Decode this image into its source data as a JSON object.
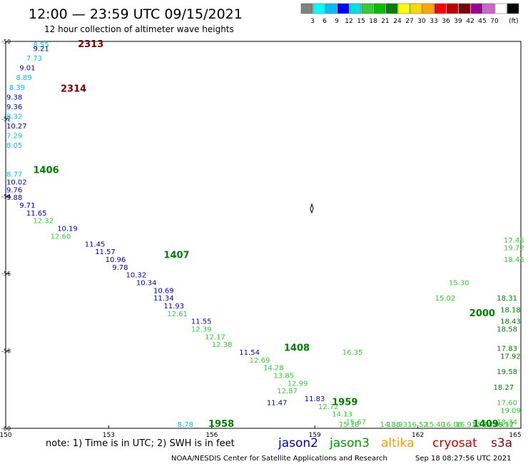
{
  "header": {
    "title": "12:00 — 23:59 UTC 09/15/2021",
    "subtitle": "12 hour collection of altimeter wave heights"
  },
  "legend": {
    "unit": "(ft)",
    "colors": [
      "#808080",
      "#00ffff",
      "#00bfff",
      "#0000ff",
      "#00e0e0",
      "#32cd32",
      "#00c000",
      "#008000",
      "#ffff00",
      "#ffd700",
      "#ffa500",
      "#ff0000",
      "#c00000",
      "#800000",
      "#990099",
      "#cc66cc",
      "#ffffff",
      "#000000"
    ],
    "labels": [
      "3",
      "6",
      "9",
      "12",
      "15",
      "18",
      "21",
      "24",
      "27",
      "30",
      "33",
      "36",
      "39",
      "42",
      "45",
      "70"
    ]
  },
  "axes": {
    "lon_ticks": [
      "150",
      "153",
      "156",
      "159",
      "162",
      "165"
    ],
    "lat_ticks": [
      "-50",
      "-52",
      "-54",
      "-56",
      "-58",
      "-60"
    ]
  },
  "track_labels": [
    {
      "text": "2313",
      "lon": 152.1,
      "lat": -50.0,
      "color": "#800000"
    },
    {
      "text": "2314",
      "lon": 151.6,
      "lat": -51.3,
      "color": "#800000"
    },
    {
      "text": "1406",
      "lon": 150.8,
      "lat": -53.4,
      "color": "#008000"
    },
    {
      "text": "1407",
      "lon": 154.6,
      "lat": -55.6,
      "color": "#008000"
    },
    {
      "text": "1408",
      "lon": 158.1,
      "lat": -58.0,
      "color": "#008000"
    },
    {
      "text": "1409",
      "lon": 163.6,
      "lat": -60.5,
      "color": "#008000"
    },
    {
      "text": "1958",
      "lon": 155.9,
      "lat": -60.7,
      "color": "#008000"
    },
    {
      "text": "1959",
      "lon": 159.5,
      "lat": -59.4,
      "color": "#008000"
    },
    {
      "text": "2000",
      "lon": 163.5,
      "lat": -57.1,
      "color": "#008000"
    }
  ],
  "readings": [
    {
      "v": "8.55",
      "lon": 150.8,
      "lat": -50.0,
      "c": "#00bfff"
    },
    {
      "v": "9.21",
      "lon": 150.8,
      "lat": -50.25,
      "c": "#0000c0"
    },
    {
      "v": "7.73",
      "lon": 150.6,
      "lat": -50.5,
      "c": "#00bfff"
    },
    {
      "v": "9.01",
      "lon": 150.4,
      "lat": -50.75,
      "c": "#0000c0"
    },
    {
      "v": "8.89",
      "lon": 150.3,
      "lat": -51.0,
      "c": "#00bfff"
    },
    {
      "v": "8.39",
      "lon": 150.1,
      "lat": -51.25,
      "c": "#00bfff"
    },
    {
      "v": "9.38",
      "lon": 149.95,
      "lat": -51.5,
      "c": "#0000c0"
    },
    {
      "v": "9.36",
      "lon": 149.8,
      "lat": -51.75,
      "c": "#0000c0"
    },
    {
      "v": "8.32",
      "lon": 149.65,
      "lat": -52.0,
      "c": "#00bfff"
    },
    {
      "v": "10.27",
      "lon": 149.5,
      "lat": -52.25,
      "c": "#0000c0"
    },
    {
      "v": "7.29",
      "lon": 149.35,
      "lat": -52.5,
      "c": "#00bfff"
    },
    {
      "v": "8.05",
      "lon": 149.2,
      "lat": -52.75,
      "c": "#00bfff"
    },
    {
      "v": "8.77",
      "lon": 149.3,
      "lat": -53.5,
      "c": "#00bfff"
    },
    {
      "v": "10.02",
      "lon": 149.6,
      "lat": -53.7,
      "c": "#0000c0"
    },
    {
      "v": "9.76",
      "lon": 149.8,
      "lat": -53.9,
      "c": "#0000c0"
    },
    {
      "v": "9.88",
      "lon": 150.0,
      "lat": -54.1,
      "c": "#0000c0"
    },
    {
      "v": "9.71",
      "lon": 150.4,
      "lat": -54.3,
      "c": "#0000c0"
    },
    {
      "v": "11.65",
      "lon": 150.6,
      "lat": -54.5,
      "c": "#0000c0"
    },
    {
      "v": "12.32",
      "lon": 150.8,
      "lat": -54.7,
      "c": "#32cd32"
    },
    {
      "v": "10.19",
      "lon": 151.5,
      "lat": -54.9,
      "c": "#0000c0"
    },
    {
      "v": "12.60",
      "lon": 151.3,
      "lat": -55.1,
      "c": "#32cd32"
    },
    {
      "v": "11.45",
      "lon": 152.3,
      "lat": -55.3,
      "c": "#0000c0"
    },
    {
      "v": "11.57",
      "lon": 152.6,
      "lat": -55.5,
      "c": "#0000c0"
    },
    {
      "v": "10.96",
      "lon": 152.9,
      "lat": -55.7,
      "c": "#0000c0"
    },
    {
      "v": "9.78",
      "lon": 153.1,
      "lat": -55.9,
      "c": "#0000c0"
    },
    {
      "v": "10.32",
      "lon": 153.5,
      "lat": -56.1,
      "c": "#0000c0"
    },
    {
      "v": "10.34",
      "lon": 153.8,
      "lat": -56.3,
      "c": "#0000c0"
    },
    {
      "v": "10.69",
      "lon": 154.3,
      "lat": -56.5,
      "c": "#0000c0"
    },
    {
      "v": "11.34",
      "lon": 154.3,
      "lat": -56.7,
      "c": "#0000c0"
    },
    {
      "v": "11.93",
      "lon": 154.6,
      "lat": -56.9,
      "c": "#0000c0"
    },
    {
      "v": "12.61",
      "lon": 154.7,
      "lat": -57.1,
      "c": "#32cd32"
    },
    {
      "v": "11.55",
      "lon": 155.4,
      "lat": -57.3,
      "c": "#0000c0"
    },
    {
      "v": "12.39",
      "lon": 155.4,
      "lat": -57.5,
      "c": "#32cd32"
    },
    {
      "v": "12.17",
      "lon": 155.8,
      "lat": -57.7,
      "c": "#32cd32"
    },
    {
      "v": "12.38",
      "lon": 156.0,
      "lat": -57.9,
      "c": "#32cd32"
    },
    {
      "v": "11.54",
      "lon": 156.8,
      "lat": -58.1,
      "c": "#0000c0"
    },
    {
      "v": "12.69",
      "lon": 157.1,
      "lat": -58.3,
      "c": "#32cd32"
    },
    {
      "v": "14.28",
      "lon": 157.5,
      "lat": -58.5,
      "c": "#32cd32"
    },
    {
      "v": "13.85",
      "lon": 157.8,
      "lat": -58.7,
      "c": "#32cd32"
    },
    {
      "v": "12.99",
      "lon": 158.2,
      "lat": -58.9,
      "c": "#32cd32"
    },
    {
      "v": "12.87",
      "lon": 157.9,
      "lat": -59.1,
      "c": "#32cd32"
    },
    {
      "v": "11.83",
      "lon": 158.7,
      "lat": -59.3,
      "c": "#0000c0"
    },
    {
      "v": "12.72",
      "lon": 159.1,
      "lat": -59.5,
      "c": "#32cd32"
    },
    {
      "v": "14.13",
      "lon": 159.5,
      "lat": -59.7,
      "c": "#32cd32"
    },
    {
      "v": "15.67",
      "lon": 159.9,
      "lat": -59.9,
      "c": "#32cd32"
    },
    {
      "v": "15.18",
      "lon": 159.7,
      "lat": -60.1,
      "c": "#32cd32"
    },
    {
      "v": "14.86",
      "lon": 160.9,
      "lat": -60.3,
      "c": "#32cd32"
    },
    {
      "v": "13.93",
      "lon": 161.1,
      "lat": -60.5,
      "c": "#32cd32"
    },
    {
      "v": "16.52",
      "lon": 161.7,
      "lat": -60.7,
      "c": "#32cd32"
    },
    {
      "v": "15.40",
      "lon": 162.2,
      "lat": -60.9,
      "c": "#32cd32"
    },
    {
      "v": "16.06",
      "lon": 162.7,
      "lat": -61.1,
      "c": "#32cd32"
    },
    {
      "v": "16.91",
      "lon": 163.1,
      "lat": -61.3,
      "c": "#32cd32"
    },
    {
      "v": "15.03",
      "lon": 163.6,
      "lat": -61.5,
      "c": "#32cd32"
    },
    {
      "v": "16.52",
      "lon": 164.2,
      "lat": -61.7,
      "c": "#32cd32"
    },
    {
      "v": "8.78",
      "lon": 155.0,
      "lat": -60.6,
      "c": "#00bfff"
    },
    {
      "v": "11.47",
      "lon": 157.6,
      "lat": -59.4,
      "c": "#0000c0"
    },
    {
      "v": "15.30",
      "lon": 162.9,
      "lat": -56.3,
      "c": "#32cd32"
    },
    {
      "v": "15.02",
      "lon": 162.5,
      "lat": -56.7,
      "c": "#32cd32"
    },
    {
      "v": "16.35",
      "lon": 159.8,
      "lat": -58.1,
      "c": "#32cd32"
    },
    {
      "v": "18.31",
      "lon": 164.3,
      "lat": -56.7,
      "c": "#008000"
    },
    {
      "v": "18.18",
      "lon": 164.4,
      "lat": -57.0,
      "c": "#008000"
    },
    {
      "v": "18.43",
      "lon": 164.4,
      "lat": -57.3,
      "c": "#008000"
    },
    {
      "v": "18.58",
      "lon": 164.3,
      "lat": -57.5,
      "c": "#008000"
    },
    {
      "v": "17.83",
      "lon": 164.3,
      "lat": -58.0,
      "c": "#008000"
    },
    {
      "v": "17.92",
      "lon": 164.4,
      "lat": -58.2,
      "c": "#008000"
    },
    {
      "v": "19.58",
      "lon": 164.3,
      "lat": -58.6,
      "c": "#008000"
    },
    {
      "v": "18.27",
      "lon": 164.2,
      "lat": -59.0,
      "c": "#008000"
    },
    {
      "v": "17.60",
      "lon": 164.3,
      "lat": -59.4,
      "c": "#32cd32"
    },
    {
      "v": "19.09",
      "lon": 164.4,
      "lat": -59.6,
      "c": "#32cd32"
    },
    {
      "v": "18.34",
      "lon": 164.3,
      "lat": -59.9,
      "c": "#32cd32"
    },
    {
      "v": "16.17",
      "lon": 164.2,
      "lat": -60.2,
      "c": "#32cd32"
    },
    {
      "v": "16.09",
      "lon": 163.9,
      "lat": -60.6,
      "c": "#32cd32"
    },
    {
      "v": "19.72",
      "lon": 164.6,
      "lat": -55.4,
      "c": "#32cd32"
    },
    {
      "v": "18.45",
      "lon": 164.6,
      "lat": -55.7,
      "c": "#32cd32"
    },
    {
      "v": "17.45",
      "lon": 164.5,
      "lat": -55.2,
      "c": "#32cd32"
    }
  ],
  "notes": {
    "note": "note: 1) Time is in UTC; 2) SWH is in feet",
    "satellites": [
      {
        "name": "jason2",
        "color": "#0000cc"
      },
      {
        "name": "jason3",
        "color": "#009900"
      },
      {
        "name": "altika",
        "color": "#ff9900"
      },
      {
        "name": "cryosat",
        "color": "#cc0000"
      },
      {
        "name": "s3a",
        "color": "#990000"
      }
    ],
    "credit": "NOAA/NESDIS Center for Satellite Applications and Research",
    "timestamp": "Sep 18 08:27:56 UTC 2021"
  }
}
